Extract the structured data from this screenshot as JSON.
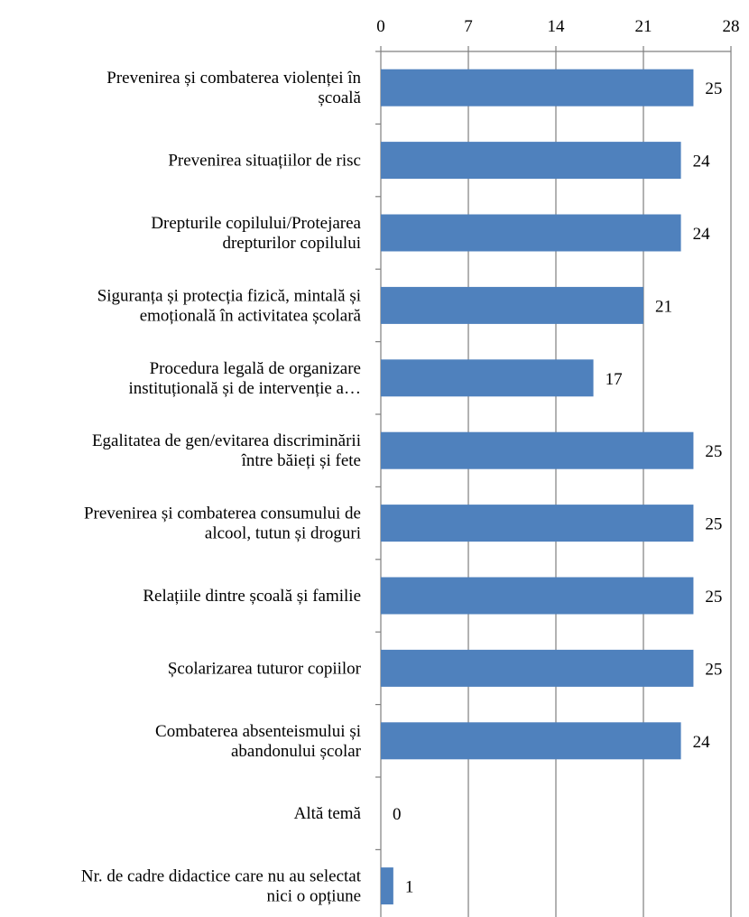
{
  "chart_data": {
    "type": "bar",
    "orientation": "horizontal",
    "title": "",
    "xlabel": "",
    "ylabel": "",
    "xlim": [
      0,
      28
    ],
    "ticks": [
      "0",
      "7",
      "14",
      "21",
      "28"
    ],
    "tick_values": [
      0,
      7,
      14,
      21,
      28
    ],
    "grid": true,
    "axis_position": "top",
    "bar_color": "#4f81bd",
    "categories": [
      [
        "Prevenirea și combaterea violenței în",
        "școală"
      ],
      [
        "Prevenirea situațiilor de risc"
      ],
      [
        "Drepturile copilului/Protejarea",
        "drepturilor copilului"
      ],
      [
        "Siguranța și protecția fizică, mintală și",
        "emoțională în activitatea școlară"
      ],
      [
        "Procedura legală de organizare",
        "instituțională și de intervenție a…"
      ],
      [
        "Egalitatea de gen/evitarea discriminării",
        "între băieți și fete"
      ],
      [
        "Prevenirea și combaterea consumului de",
        "alcool, tutun și droguri"
      ],
      [
        "Relațiile dintre școală și familie"
      ],
      [
        "Școlarizarea tuturor copiilor"
      ],
      [
        "Combaterea absenteismului și",
        "abandonului școlar"
      ],
      [
        "Altă temă"
      ],
      [
        "Nr. de cadre didactice care nu au selectat",
        "nici o opțiune"
      ]
    ],
    "values": [
      25,
      24,
      24,
      21,
      17,
      25,
      25,
      25,
      25,
      24,
      0,
      1
    ]
  }
}
